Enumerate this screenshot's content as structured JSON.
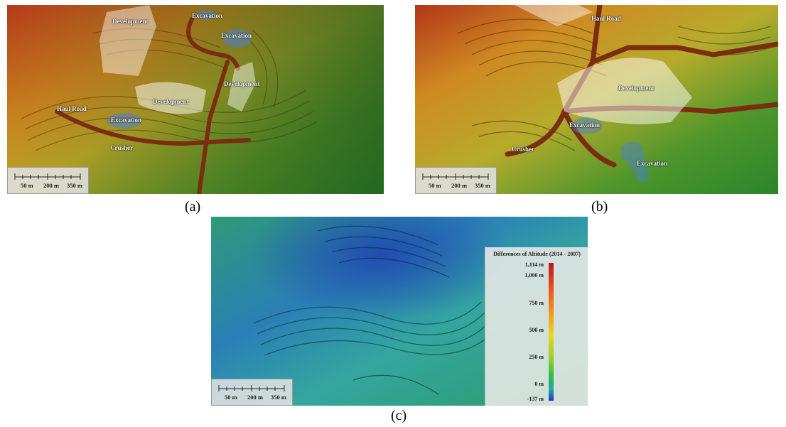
{
  "figure": {
    "captions": {
      "a": "(a)",
      "b": "(b)",
      "c": "(c)"
    },
    "scale_labels": [
      "50 m",
      "200 m",
      "350 m"
    ]
  },
  "panel_a": {
    "labels": {
      "development_top": "Development",
      "excavation_top": "Excavation",
      "excavation_right": "Excavation",
      "development_right": "Development",
      "development_center": "Development",
      "haul_road": "Haul Road",
      "excavation_left": "Excavation",
      "crusher": "Crusher"
    }
  },
  "panel_b": {
    "labels": {
      "haul_road": "Haul Road",
      "development": "Development",
      "excavation_left": "Excavation",
      "crusher": "Crusher",
      "excavation_right": "Excavation"
    }
  },
  "panel_c": {
    "legend_title": "Differences of Altitude (2014 - 2007)",
    "legend_ticks": [
      "1,114 m",
      "1,000 m",
      "750 m",
      "500 m",
      "250 m",
      "0 m",
      "-137 m"
    ],
    "legend_values": [
      1114,
      1000,
      750,
      500,
      250,
      0,
      -137
    ],
    "colormap": [
      "#c0151b",
      "#e8501b",
      "#f2941f",
      "#e9d527",
      "#9cd130",
      "#2fbf45",
      "#23a4a4",
      "#2436c4"
    ]
  }
}
